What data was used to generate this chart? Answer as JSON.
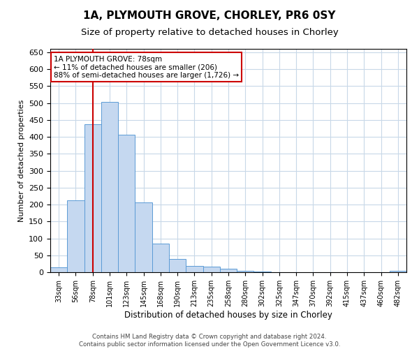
{
  "title_line1": "1A, PLYMOUTH GROVE, CHORLEY, PR6 0SY",
  "title_line2": "Size of property relative to detached houses in Chorley",
  "xlabel": "Distribution of detached houses by size in Chorley",
  "ylabel": "Number of detached properties",
  "categories": [
    "33sqm",
    "56sqm",
    "78sqm",
    "101sqm",
    "123sqm",
    "145sqm",
    "168sqm",
    "190sqm",
    "213sqm",
    "235sqm",
    "258sqm",
    "280sqm",
    "302sqm",
    "325sqm",
    "347sqm",
    "370sqm",
    "392sqm",
    "415sqm",
    "437sqm",
    "460sqm",
    "482sqm"
  ],
  "values": [
    15,
    213,
    437,
    503,
    407,
    207,
    85,
    40,
    18,
    17,
    10,
    5,
    3,
    1,
    1,
    0,
    0,
    0,
    0,
    0,
    4
  ],
  "bar_color": "#c5d8f0",
  "bar_edge_color": "#5b9bd5",
  "highlight_color": "#cc0000",
  "annotation_text": "1A PLYMOUTH GROVE: 78sqm\n← 11% of detached houses are smaller (206)\n88% of semi-detached houses are larger (1,726) →",
  "annotation_box_color": "#ffffff",
  "annotation_box_edge": "#cc0000",
  "ylim": [
    0,
    660
  ],
  "yticks": [
    0,
    50,
    100,
    150,
    200,
    250,
    300,
    350,
    400,
    450,
    500,
    550,
    600,
    650
  ],
  "grid_color": "#c8d8e8",
  "footer_line1": "Contains HM Land Registry data © Crown copyright and database right 2024.",
  "footer_line2": "Contains public sector information licensed under the Open Government Licence v3.0.",
  "title_fontsize": 11,
  "subtitle_fontsize": 9.5,
  "bar_width": 1.0
}
